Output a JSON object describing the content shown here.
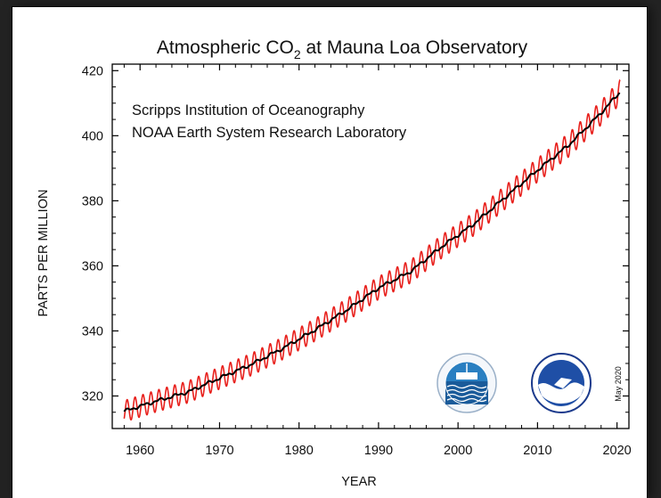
{
  "chart_data": {
    "type": "line",
    "title": "Atmospheric CO",
    "title_subscript": "2",
    "title_suffix": " at Mauna Loa Observatory",
    "credit_lines": [
      "Scripps Institution of Oceanography",
      "NOAA Earth System Research Laboratory"
    ],
    "xlabel": "YEAR",
    "ylabel": "PARTS PER MILLION",
    "xlim": [
      1956.5,
      2021.5
    ],
    "ylim": [
      310,
      422
    ],
    "xticks": [
      1960,
      1970,
      1980,
      1990,
      2000,
      2010,
      2020
    ],
    "yticks": [
      320,
      340,
      360,
      380,
      400,
      420
    ],
    "date_stamp": "May 2020",
    "colors": {
      "monthly": "#e8201c",
      "trend": "#000000",
      "axes": "#000000"
    },
    "logos": [
      "scripps-logo",
      "noaa-logo"
    ],
    "series": [
      {
        "style": "red-monthly",
        "x": [
          1958,
          1962,
          1966,
          1970,
          1974,
          1978,
          1982,
          1986,
          1990,
          1994,
          1998,
          2002,
          2006,
          2010,
          2014,
          2018,
          2020.4
        ],
        "y": [
          315.3,
          318.4,
          321.2,
          325.5,
          329.7,
          334.7,
          340.3,
          346.4,
          353.2,
          358.2,
          366.0,
          372.9,
          381.2,
          389.4,
          397.3,
          407.0,
          413.5
        ],
        "seasonal_amplitude": 3.3
      },
      {
        "style": "black-trend",
        "x": [
          1958,
          1962,
          1966,
          1970,
          1974,
          1978,
          1982,
          1986,
          1990,
          1994,
          1998,
          2002,
          2006,
          2010,
          2014,
          2018,
          2020.4
        ],
        "y": [
          315.3,
          318.4,
          321.2,
          325.5,
          329.7,
          334.7,
          340.3,
          346.4,
          353.2,
          358.2,
          366.0,
          372.9,
          381.2,
          389.4,
          397.3,
          407.0,
          413.5
        ]
      }
    ]
  }
}
